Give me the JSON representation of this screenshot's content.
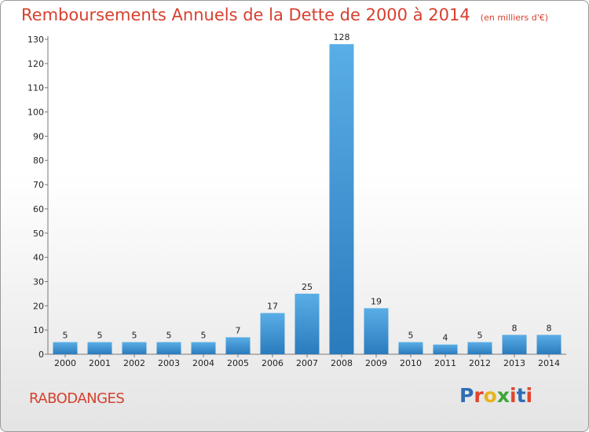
{
  "title": "Remboursements Annuels de la Dette de 2000 à 2014",
  "unit_label": "(en milliers d'€)",
  "commune": "RABODANGES",
  "logo_text": "Proxiti",
  "colors": {
    "title": "#d6402f",
    "bar_light": "#5aaee6",
    "bar_dark": "#2a7bbd",
    "logo_letters": [
      "#2e6db4",
      "#e0452b",
      "#e8b31c",
      "#3fa535",
      "#e0452b",
      "#2e6db4",
      "#e0452b"
    ]
  },
  "chart_data": {
    "type": "bar",
    "categories": [
      "2000",
      "2001",
      "2002",
      "2003",
      "2004",
      "2005",
      "2006",
      "2007",
      "2008",
      "2009",
      "2010",
      "2011",
      "2012",
      "2013",
      "2014"
    ],
    "values": [
      5,
      5,
      5,
      5,
      5,
      7,
      17,
      25,
      128,
      19,
      5,
      4,
      5,
      8,
      8
    ],
    "ylim": [
      0,
      130
    ],
    "yticks": [
      0,
      10,
      20,
      30,
      40,
      50,
      60,
      70,
      80,
      90,
      100,
      110,
      120,
      130
    ],
    "grid": false
  }
}
